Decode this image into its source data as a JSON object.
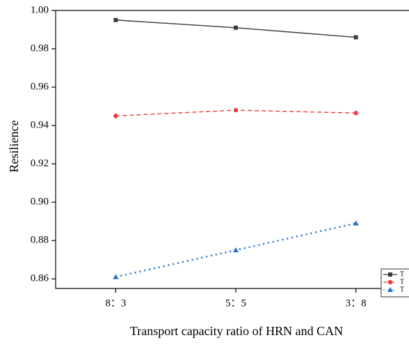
{
  "chart_data": {
    "type": "line",
    "x_label": "Transport capacity ratio of HRN and CAN",
    "y_label": "Resilience",
    "categories": [
      "8：3",
      "5：5",
      "3：8"
    ],
    "series": [
      {
        "name": "T",
        "color": "#3a3a3a",
        "marker": "square",
        "dash": "solid",
        "values": [
          0.995,
          0.991,
          0.986
        ]
      },
      {
        "name": "T",
        "color": "#f03a3a",
        "marker": "circle",
        "dash": "dashed",
        "values": [
          0.945,
          0.948,
          0.9465
        ]
      },
      {
        "name": "T",
        "color": "#1a6fd0",
        "marker": "triangle",
        "dash": "dotted",
        "values": [
          0.861,
          0.875,
          0.889
        ]
      }
    ],
    "ylim": [
      0.855,
      1.0
    ],
    "yticks": [
      0.86,
      0.88,
      {
        "value": 0.9,
        "label": "0.90"
      },
      0.92,
      0.94,
      0.96,
      0.98,
      {
        "value": 1,
        "label": "1.00"
      }
    ],
    "legend": "lower right"
  }
}
